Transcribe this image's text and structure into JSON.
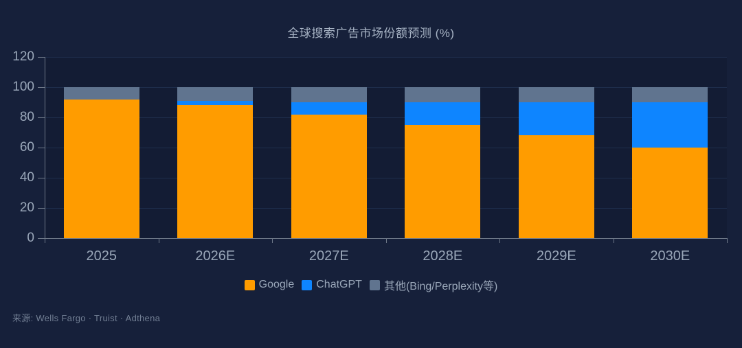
{
  "title": "全球搜索广告市场份额预测 (%)",
  "source": "来源: Wells Fargo · Truist · Adthena",
  "colors": {
    "google": "#FF9C00",
    "chatgpt": "#0E85FF",
    "other": "#60748F",
    "background": "#16203A",
    "grid": "#1E2D4C",
    "axis": "#6F7989",
    "tick_label": "#9AA7B9",
    "title_text": "#A7B3C4",
    "source_text": "#717E93"
  },
  "chart_data": {
    "type": "bar",
    "stacked": true,
    "title": "全球搜索广告市场份额预测 (%)",
    "categories": [
      "2025",
      "2026E",
      "2027E",
      "2028E",
      "2029E",
      "2030E"
    ],
    "series": [
      {
        "name": "Google",
        "color_key": "google",
        "values": [
          92,
          88,
          82,
          75,
          68,
          60
        ]
      },
      {
        "name": "ChatGPT",
        "color_key": "chatgpt",
        "values": [
          0,
          3,
          8,
          15,
          22,
          30
        ]
      },
      {
        "name": "其他(Bing/Perplexity等)",
        "color_key": "other",
        "values": [
          8,
          9,
          10,
          10,
          10,
          10
        ]
      }
    ],
    "ylabel": "",
    "xlabel": "",
    "ylim": [
      0,
      120
    ],
    "yticks": [
      0,
      20,
      40,
      60,
      80,
      100,
      120
    ],
    "grid": true,
    "legend_position": "bottom"
  }
}
